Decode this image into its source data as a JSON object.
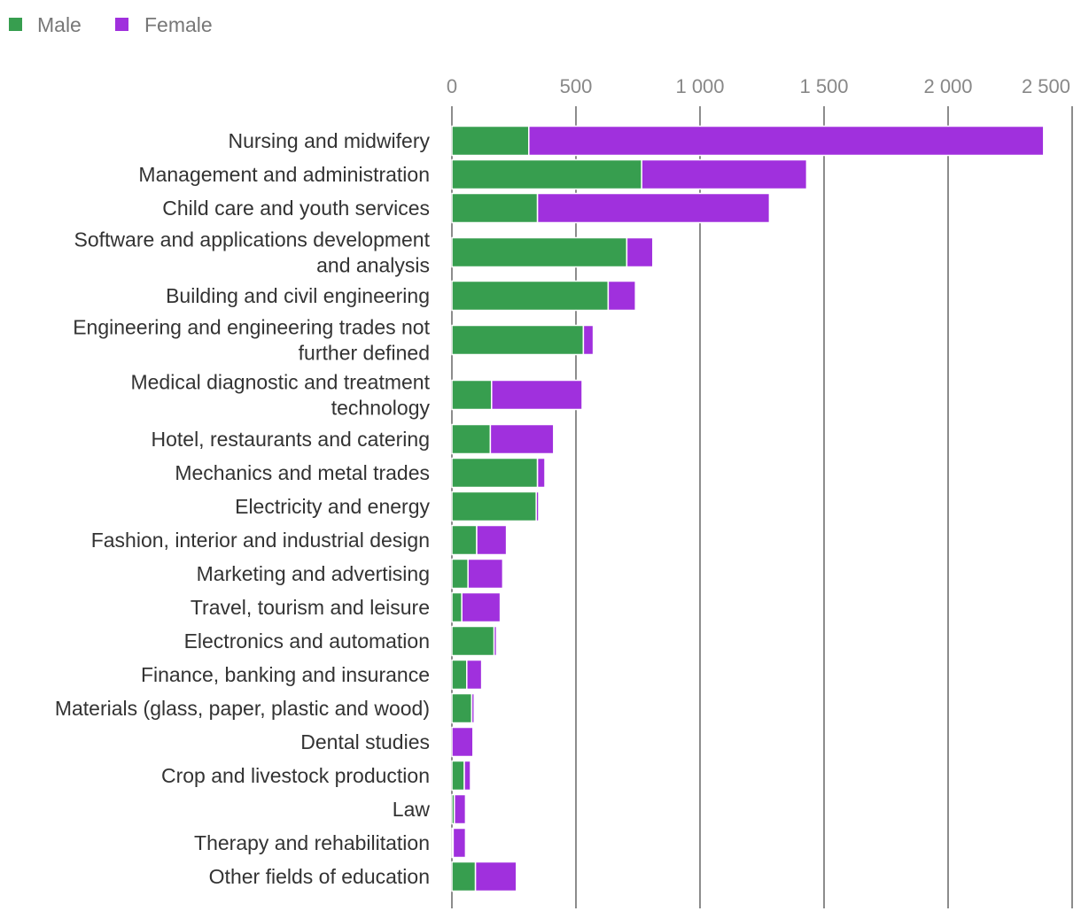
{
  "chart_data": {
    "type": "bar",
    "orientation": "horizontal",
    "stacked": true,
    "legend_position": "top-left",
    "grid": true,
    "xlim": [
      0,
      2500
    ],
    "xticks": [
      0,
      500,
      1000,
      1500,
      2000,
      2500
    ],
    "xtick_labels": [
      "0",
      "500",
      "1 000",
      "1 500",
      "2 000",
      "2 500"
    ],
    "categories": [
      [
        "Nursing and midwifery"
      ],
      [
        "Management and administration"
      ],
      [
        "Child care and youth services"
      ],
      [
        "Software and applications development",
        "and analysis"
      ],
      [
        "Building and civil engineering"
      ],
      [
        "Engineering and engineering trades not",
        "further defined"
      ],
      [
        "Medical diagnostic and treatment",
        "technology"
      ],
      [
        "Hotel, restaurants and catering"
      ],
      [
        "Mechanics and metal trades"
      ],
      [
        "Electricity and energy"
      ],
      [
        "Fashion, interior and industrial design"
      ],
      [
        "Marketing and advertising"
      ],
      [
        "Travel, tourism and leisure"
      ],
      [
        "Electronics and automation"
      ],
      [
        "Finance, banking and insurance"
      ],
      [
        "Materials (glass, paper, plastic and wood)"
      ],
      [
        "Dental studies"
      ],
      [
        "Crop and livestock production"
      ],
      [
        "Law"
      ],
      [
        "Therapy and rehabilitation"
      ],
      [
        "Other fields of education"
      ]
    ],
    "series": [
      {
        "name": "Male",
        "color": "#379e4f",
        "values": [
          310,
          765,
          345,
          705,
          630,
          530,
          160,
          155,
          345,
          340,
          100,
          65,
          40,
          170,
          60,
          80,
          0,
          50,
          10,
          5,
          95
        ]
      },
      {
        "name": "Female",
        "color": "#a030dd",
        "values": [
          2075,
          665,
          935,
          105,
          110,
          40,
          365,
          255,
          30,
          10,
          120,
          140,
          155,
          10,
          60,
          10,
          85,
          25,
          45,
          50,
          165
        ]
      }
    ]
  }
}
